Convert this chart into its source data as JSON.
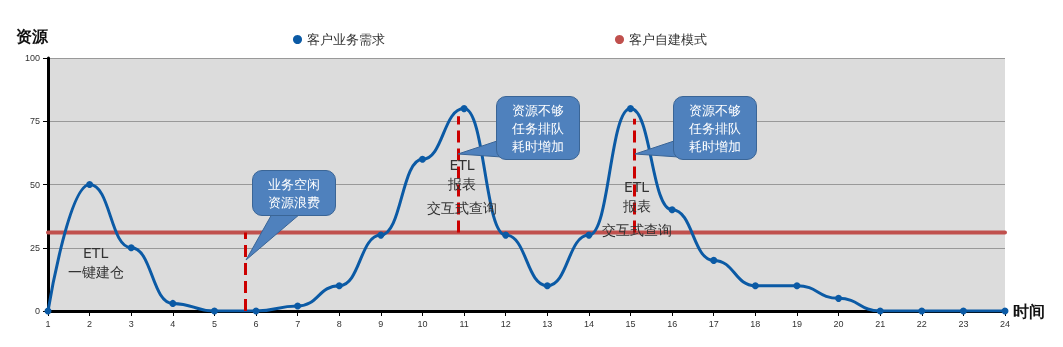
{
  "chart_data": {
    "type": "line",
    "xlabel": "时间",
    "ylabel": "资源",
    "x": [
      1,
      2,
      3,
      4,
      5,
      6,
      7,
      8,
      9,
      10,
      11,
      12,
      13,
      14,
      15,
      16,
      17,
      18,
      19,
      20,
      21,
      22,
      23,
      24
    ],
    "series": [
      {
        "name": "客户业务需求",
        "color": "#0b5aa5",
        "values": [
          0,
          50,
          25,
          3,
          0,
          0,
          2,
          10,
          30,
          60,
          80,
          30,
          10,
          30,
          80,
          40,
          20,
          10,
          10,
          5,
          0,
          0,
          0,
          0
        ]
      },
      {
        "name": "客户自建模式",
        "color": "#c0504d",
        "marker": "none",
        "values": [
          31,
          31,
          31,
          31,
          31,
          31,
          31,
          31,
          31,
          31,
          31,
          31,
          31,
          31,
          31,
          31,
          31,
          31,
          31,
          31,
          31,
          31,
          31,
          31
        ]
      }
    ],
    "xlim": [
      1,
      24
    ],
    "xticks": [
      1,
      2,
      3,
      4,
      5,
      6,
      7,
      8,
      9,
      10,
      11,
      12,
      13,
      14,
      15,
      16,
      17,
      18,
      19,
      20,
      21,
      22,
      23,
      24
    ],
    "ylim": [
      0,
      100
    ],
    "yticks": [
      0,
      25,
      50,
      75,
      100
    ],
    "grid": "y",
    "legend": "top",
    "marker": "circle",
    "ref_lines": [
      {
        "axis": "x",
        "value": 5.75,
        "color": "#cc0000",
        "line_style": "dashed"
      },
      {
        "axis": "x",
        "value": 10.85,
        "color": "#cc0000",
        "line_style": "dashed"
      },
      {
        "axis": "x",
        "value": 15.1,
        "color": "#cc0000",
        "line_style": "dashed"
      }
    ],
    "annotations": [
      "ETL\n一键建仓",
      "业务空闲资源浪费",
      "ETL\n报表",
      "交互式查询",
      {
        "text": "资源不够任务排队耗时增加",
        "x": 10.85,
        "y": 62
      },
      "ETL\n报表",
      "交互式查询",
      {
        "text": "资源不够任务排队耗时增加",
        "x": 15.1,
        "y": 62
      }
    ]
  }
}
